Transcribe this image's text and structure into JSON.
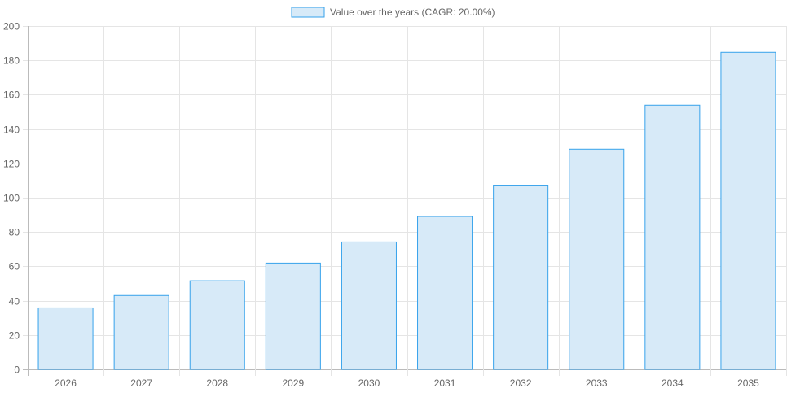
{
  "chart_data": {
    "type": "bar",
    "categories": [
      "2026",
      "2027",
      "2028",
      "2029",
      "2030",
      "2031",
      "2032",
      "2033",
      "2034",
      "2035"
    ],
    "series": [
      {
        "name": "Value over the years (CAGR: 20.00%)",
        "values": [
          35.8,
          43.0,
          51.6,
          61.9,
          74.2,
          89.1,
          106.9,
          128.3,
          153.9,
          184.7
        ]
      }
    ],
    "title": "",
    "xlabel": "",
    "ylabel": "",
    "ylim": [
      0,
      200
    ],
    "yticks": [
      0,
      20,
      40,
      60,
      80,
      100,
      120,
      140,
      160,
      180,
      200
    ],
    "grid": true,
    "legend": "top-center",
    "colors": {
      "bar_fill": "#d7eaf8",
      "bar_border": "#36a2eb",
      "grid": "#e5e5e5",
      "text": "#666666"
    }
  }
}
